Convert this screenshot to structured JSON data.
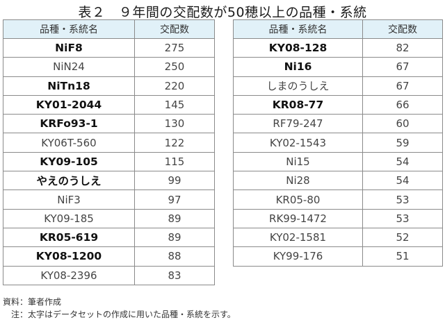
{
  "title": "表２　９年間の交配数が50穂以上の品種・系統",
  "tables": [
    {
      "headers": {
        "name": "品種・系統名",
        "count": "交配数"
      },
      "rows": [
        {
          "name": "NiF8",
          "count": "275",
          "bold": true
        },
        {
          "name": "NiN24",
          "count": "250",
          "bold": false
        },
        {
          "name": "NiTn18",
          "count": "220",
          "bold": true
        },
        {
          "name": "KY01-2044",
          "count": "145",
          "bold": true
        },
        {
          "name": "KRFo93-1",
          "count": "130",
          "bold": true
        },
        {
          "name": "KY06T-560",
          "count": "122",
          "bold": false
        },
        {
          "name": "KY09-105",
          "count": "115",
          "bold": true
        },
        {
          "name": "やえのうしえ",
          "count": "99",
          "bold": true
        },
        {
          "name": "NiF3",
          "count": "97",
          "bold": false
        },
        {
          "name": "KY09-185",
          "count": "89",
          "bold": false
        },
        {
          "name": "KR05-619",
          "count": "89",
          "bold": true
        },
        {
          "name": "KY08-1200",
          "count": "88",
          "bold": true
        },
        {
          "name": "KY08-2396",
          "count": "83",
          "bold": false
        }
      ]
    },
    {
      "headers": {
        "name": "品種・系統名",
        "count": "交配数"
      },
      "rows": [
        {
          "name": "KY08-128",
          "count": "82",
          "bold": true
        },
        {
          "name": "Ni16",
          "count": "67",
          "bold": true
        },
        {
          "name": "しまのうしえ",
          "count": "67",
          "bold": false
        },
        {
          "name": "KR08-77",
          "count": "66",
          "bold": true
        },
        {
          "name": "RF79-247",
          "count": "60",
          "bold": false
        },
        {
          "name": "KY02-1543",
          "count": "59",
          "bold": false
        },
        {
          "name": "Ni15",
          "count": "54",
          "bold": false
        },
        {
          "name": "Ni28",
          "count": "54",
          "bold": false
        },
        {
          "name": "KR05-80",
          "count": "53",
          "bold": false
        },
        {
          "name": "RK99-1472",
          "count": "53",
          "bold": false
        },
        {
          "name": "KY02-1581",
          "count": "52",
          "bold": false
        },
        {
          "name": "KY99-176",
          "count": "51",
          "bold": false
        }
      ]
    }
  ],
  "notes": {
    "source": "資料：筆者作成",
    "bold_note": "注：太字はデータセットの作成に用いた品種・系統を示す。"
  }
}
